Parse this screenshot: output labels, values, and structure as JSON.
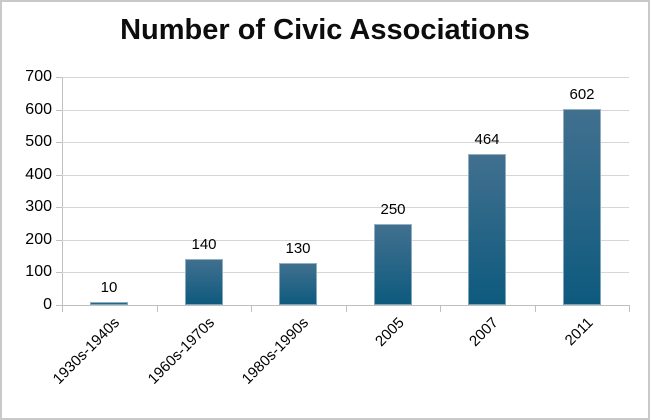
{
  "chart_data": {
    "type": "bar",
    "title": "Number of Civic Associations",
    "categories": [
      "1930s-1940s",
      "1960s-1970s",
      "1980s-1990s",
      "2005",
      "2007",
      "2011"
    ],
    "values": [
      10,
      140,
      130,
      250,
      464,
      602
    ],
    "data_labels": [
      "10",
      "140",
      "130",
      "250",
      "464",
      "602"
    ],
    "xlabel": "",
    "ylabel": "",
    "ylim": [
      0,
      700
    ],
    "yticks": [
      0,
      100,
      200,
      300,
      400,
      500,
      600,
      700
    ],
    "grid": true,
    "legend_position": "none",
    "bar_gradient_top": "#42708f",
    "bar_gradient_bottom": "#0d5a7e",
    "gridline_color": "#d6d6d6",
    "axis_line_color": "#bfbfbf",
    "frame_border_color": "#c9c9c9",
    "text_color": "#000000"
  }
}
